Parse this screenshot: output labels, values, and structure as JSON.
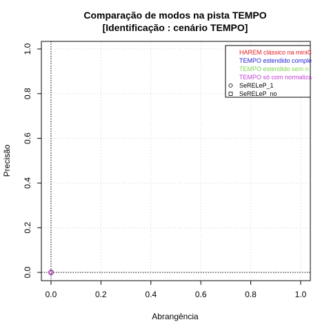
{
  "chart_data": {
    "type": "scatter",
    "title": "Comparação de modos na pista TEMPO",
    "subtitle": "[Identificação : cenário TEMPO]",
    "xlabel": "Abrangência",
    "ylabel": "Precisão",
    "xlim": [
      0,
      1
    ],
    "ylim": [
      0,
      1
    ],
    "x_ticks": [
      "0.0",
      "0.2",
      "0.4",
      "0.6",
      "0.8",
      "1.0"
    ],
    "y_ticks": [
      "0.0",
      "0.2",
      "0.4",
      "0.6",
      "0.8",
      "1.0"
    ],
    "grid": true,
    "legend_position": "top-right",
    "reference_lines": [
      {
        "axis": "x",
        "value": 0
      },
      {
        "axis": "y",
        "value": 0
      }
    ],
    "legend": {
      "colors": [
        {
          "label": "HAREM clássico na miniC",
          "color": "#e41a1c"
        },
        {
          "label": "TEMPO estendido comple",
          "color": "#1f1fd1"
        },
        {
          "label": "TEMPO estendido sem n",
          "color": "#7cd44a"
        },
        {
          "label": "TEMPO só com normaliza",
          "color": "#c23fd0"
        }
      ],
      "shapes": [
        {
          "label": "SeRELeP_1",
          "shape": "circle"
        },
        {
          "label": "SeRELeP_no",
          "shape": "square"
        }
      ]
    },
    "series": [
      {
        "mode": "HAREM clássico na miniC",
        "system": "SeRELeP_1",
        "color": "#e41a1c",
        "shape": "circle",
        "points": [
          {
            "x": 0.0,
            "y": 0.0
          }
        ]
      },
      {
        "mode": "TEMPO estendido comple",
        "system": "SeRELeP_1",
        "color": "#1f1fd1",
        "shape": "circle",
        "points": [
          {
            "x": 0.0,
            "y": 0.0
          }
        ]
      },
      {
        "mode": "TEMPO estendido sem n",
        "system": "SeRELeP_1",
        "color": "#7cd44a",
        "shape": "circle",
        "points": [
          {
            "x": 0.0,
            "y": 0.0
          }
        ]
      },
      {
        "mode": "TEMPO só com normaliza",
        "system": "SeRELeP_1",
        "color": "#c23fd0",
        "shape": "circle",
        "points": [
          {
            "x": 0.0,
            "y": 0.0
          }
        ]
      }
    ]
  }
}
